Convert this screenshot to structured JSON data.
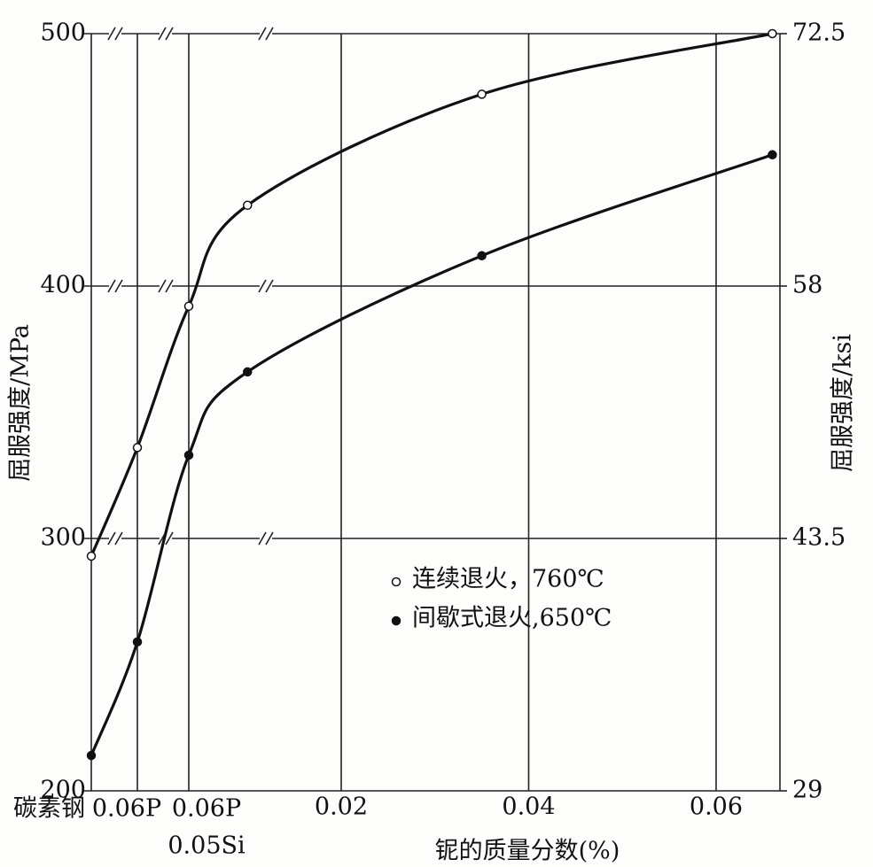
{
  "chart_data": {
    "type": "line",
    "xlabel": "铌的质量分数(%)",
    "ylabel": "屈服强度/MPa",
    "y2label": "屈服强度/ksi",
    "categories": [
      "碳素钢",
      "0.06P",
      [
        "0.06P",
        "0.05Si"
      ]
    ],
    "x": [
      0.01,
      0.035,
      0.066
    ],
    "xlim": [
      0,
      0.067
    ],
    "xticks": [
      0.02,
      0.04,
      0.06
    ],
    "ylim": [
      200,
      500
    ],
    "yticks": [
      200,
      300,
      400,
      500
    ],
    "y2lim": [
      29,
      72.5
    ],
    "y2ticks": [
      29,
      43.5,
      58,
      72.5
    ],
    "grid": true,
    "series": [
      {
        "name": "连续退火，760℃",
        "marker": "open",
        "color": "#111111",
        "category_values": [
          293,
          336,
          392
        ],
        "values": [
          432,
          476,
          500
        ]
      },
      {
        "name": "间歇式退火,650℃",
        "marker": "filled",
        "color": "#111111",
        "category_values": [
          214,
          259,
          333
        ],
        "values": [
          366,
          412,
          452
        ]
      }
    ]
  }
}
